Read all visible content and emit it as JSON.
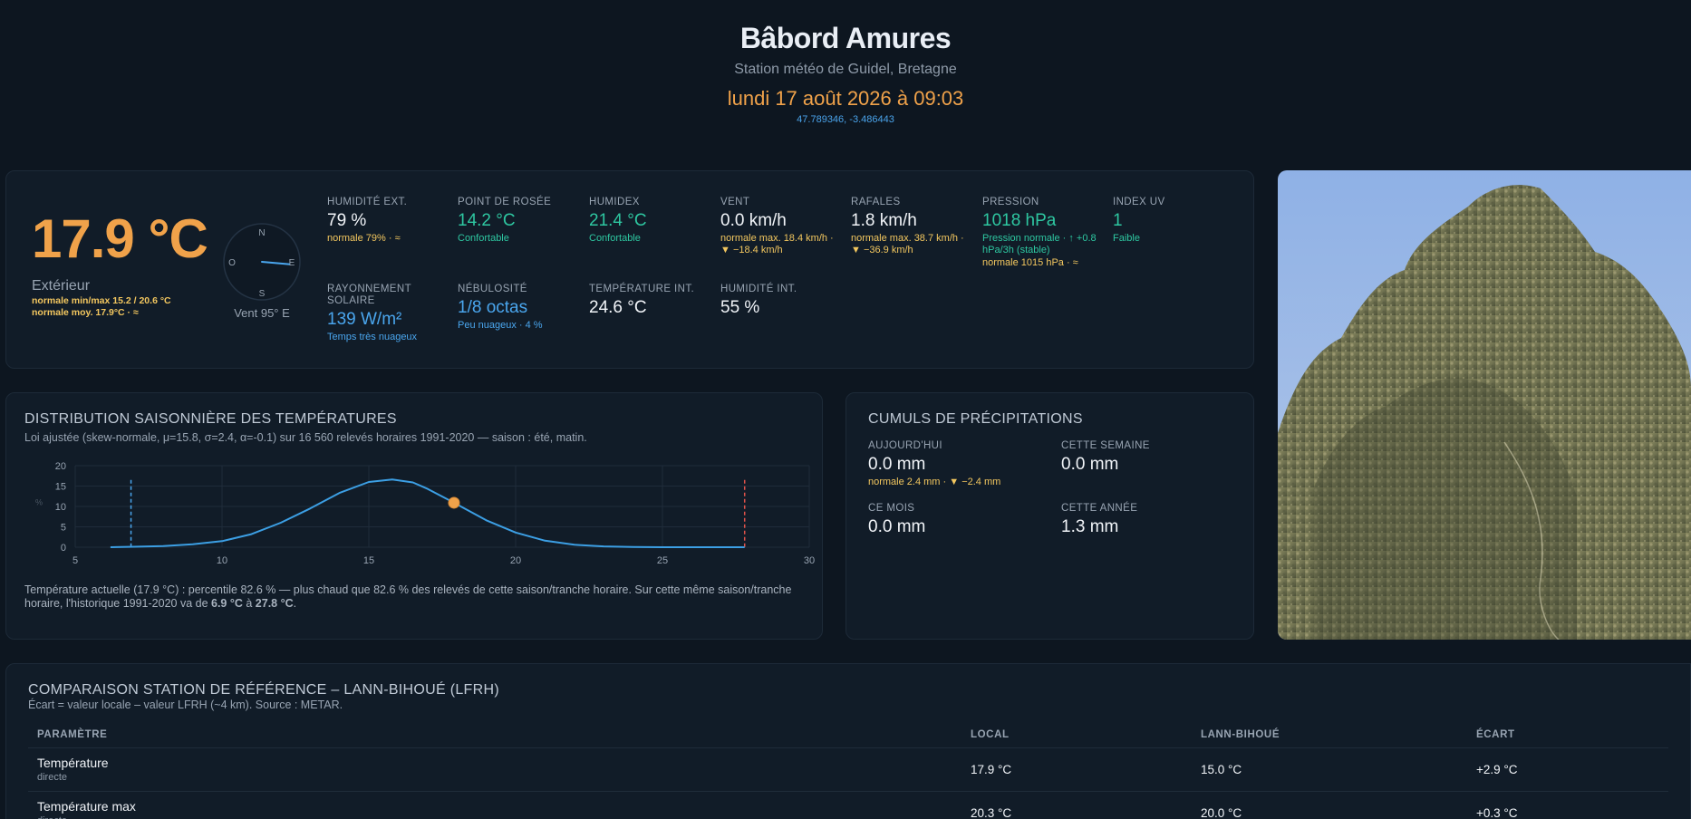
{
  "header": {
    "title": "Bâbord Amures",
    "subtitle": "Station météo de Guidel, Bretagne",
    "datetime": "lundi 17 août 2026 à 09:03",
    "coords": "47.789346, -3.486443"
  },
  "current": {
    "temperature": "17.9 °C",
    "label": "Extérieur",
    "normal_minmax": "normale min/max 15.2 / 20.6 °C",
    "normal_avg": "normale moy. 17.9°C · ≈",
    "compass": {
      "n": "N",
      "s": "S",
      "e": "E",
      "o": "O",
      "direction_deg": 95
    },
    "wind_label": "Vent 95° E",
    "colors": {
      "accent": "#f0a24a",
      "green": "#2ec7a1",
      "blue": "#4aa6ee",
      "yellow": "#f3c75f"
    }
  },
  "metrics": {
    "humidity_ext": {
      "label": "HUMIDITÉ EXT.",
      "value": "79 %",
      "sub": "normale 79% · ≈"
    },
    "dew_point": {
      "label": "POINT DE ROSÉE",
      "value": "14.2 °C",
      "sub": "Confortable"
    },
    "humidex": {
      "label": "HUMIDEX",
      "value": "21.4 °C",
      "sub": "Confortable"
    },
    "wind": {
      "label": "VENT",
      "value": "0.0 km/h",
      "sub": "normale max. 18.4 km/h · ▼ −18.4 km/h"
    },
    "gusts": {
      "label": "RAFALES",
      "value": "1.8 km/h",
      "sub": "normale max. 38.7 km/h · ▼ −36.9 km/h"
    },
    "pressure": {
      "label": "PRESSION",
      "value": "1018 hPa",
      "sub": "Pression normale · ↑ +0.8 hPa/3h (stable)",
      "sub2": "normale 1015 hPa · ≈"
    },
    "uv": {
      "label": "INDEX UV",
      "value": "1",
      "sub": "Faible"
    },
    "solar": {
      "label": "RAYONNEMENT SOLAIRE",
      "value": "139 W/m²",
      "sub": "Temps très nuageux"
    },
    "cloud": {
      "label": "NÉBULOSITÉ",
      "value": "1/8 octas",
      "sub": "Peu nuageux · 4 %"
    },
    "temp_int": {
      "label": "TEMPÉRATURE INT.",
      "value": "24.6 °C"
    },
    "humidity_int": {
      "label": "HUMIDITÉ INT.",
      "value": "55 %"
    }
  },
  "distribution": {
    "title": "DISTRIBUTION SAISONNIÈRE DES TEMPÉRATURES",
    "desc": "Loi ajustée (skew-normale, μ=15.8, σ=2.4, α=-0.1) sur 16 560 relevés horaires 1991-2020 — saison : été, matin.",
    "footer_pre": "Température actuelle (17.9 °C) : percentile 82.6 % — plus chaud que 82.6 % des relevés de cette saison/tranche horaire. Sur cette même saison/tranche horaire, l'historique 1991-2020 va de ",
    "footer_min": "6.9 °C",
    "footer_mid": " à ",
    "footer_max": "27.8 °C",
    "footer_end": "."
  },
  "chart_data": {
    "type": "line",
    "title": "",
    "xlabel": "",
    "ylabel": "%",
    "xlim": [
      5,
      30
    ],
    "ylim": [
      0,
      20
    ],
    "xticks": [
      5,
      10,
      15,
      20,
      25,
      30
    ],
    "yticks": [
      0,
      5,
      10,
      15,
      20
    ],
    "grid": true,
    "series": [
      {
        "x": [
          6.2,
          7,
          8,
          9,
          10,
          11,
          12,
          13,
          14,
          15,
          15.8,
          16.5,
          17,
          17.9,
          19,
          20,
          21,
          22,
          23,
          24,
          25,
          26,
          27,
          27.8
        ],
        "values": [
          0,
          0.1,
          0.3,
          0.7,
          1.5,
          3.2,
          6.0,
          9.5,
          13.3,
          16.0,
          16.6,
          15.9,
          14.3,
          10.9,
          6.6,
          3.6,
          1.6,
          0.6,
          0.2,
          0.05,
          0,
          0,
          0,
          0
        ]
      }
    ],
    "current_point": {
      "x": 17.9,
      "y": 10.9
    },
    "min_marker": 6.9,
    "max_marker": 27.8
  },
  "precip": {
    "title": "CUMULS DE PRÉCIPITATIONS",
    "today": {
      "label": "AUJOURD'HUI",
      "value": "0.0 mm",
      "sub": "normale 2.4 mm · ▼ −2.4 mm"
    },
    "week": {
      "label": "CETTE SEMAINE",
      "value": "0.0 mm"
    },
    "month": {
      "label": "CE MOIS",
      "value": "0.0 mm"
    },
    "year": {
      "label": "CETTE ANNÉE",
      "value": "1.3 mm"
    }
  },
  "comparison": {
    "title": "COMPARAISON STATION DE RÉFÉRENCE – LANN-BIHOUÉ (LFRH)",
    "desc": "Écart = valeur locale – valeur LFRH (~4 km). Source : METAR.",
    "headers": [
      "PARAMÈTRE",
      "LOCAL",
      "LANN-BIHOUÉ",
      "ÉCART"
    ],
    "rows": [
      {
        "name": "Température",
        "sub": "directe",
        "local": "17.9 °C",
        "ref": "15.0 °C",
        "diff": "+2.9 °C"
      },
      {
        "name": "Température max",
        "sub": "directe",
        "local": "20.3 °C",
        "ref": "20.0 °C",
        "diff": "+0.3 °C"
      }
    ]
  }
}
